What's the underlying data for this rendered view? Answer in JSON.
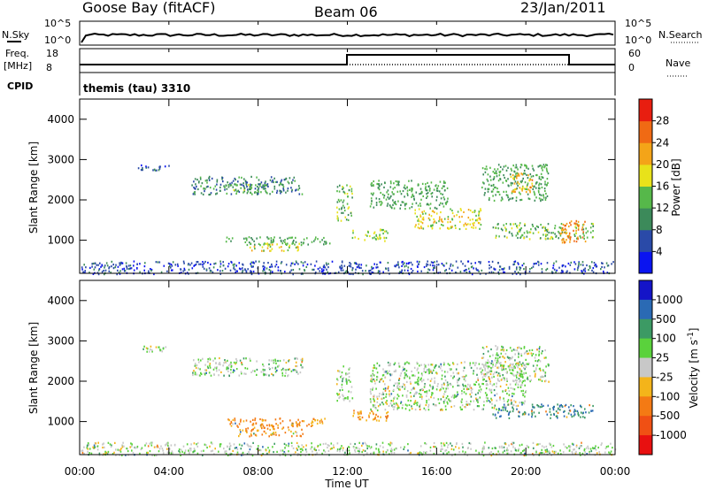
{
  "header": {
    "station": "Goose Bay (fitACF)",
    "beam": "Beam 06",
    "date": "23/Jan/2011"
  },
  "small_panels": {
    "nsky_label": "N.Sky",
    "nsky_ticks": [
      "10^5",
      "10^0"
    ],
    "nsearch_label": "N.Search",
    "nsearch_ticks": [
      "10^5",
      "10^0"
    ],
    "freq_label": "Freq.",
    "freq_unit": "[MHz]",
    "freq_ticks": [
      "18",
      "8"
    ],
    "nave_label": "Nave",
    "nave_ticks": [
      "60",
      "0"
    ],
    "cpid_label": "CPID",
    "cpid_value": "themis (tau) 3310"
  },
  "chart_data": [
    {
      "type": "heatmap",
      "title": "",
      "xlabel": "Time UT",
      "ylabel": "Slant Range [km]",
      "xlim": [
        0,
        24
      ],
      "ylim": [
        180,
        4500
      ],
      "x_ticks": [
        "00:00",
        "04:00",
        "08:00",
        "12:00",
        "16:00",
        "20:00",
        "00:00"
      ],
      "y_ticks": [
        "1000",
        "2000",
        "3000",
        "4000"
      ],
      "colorbar": {
        "label": "Power [dB]",
        "ticks": [
          "4",
          "8",
          "12",
          "16",
          "20",
          "24",
          "28"
        ],
        "colors": [
          "#0a14f0",
          "#2a4aa8",
          "#3c8a5a",
          "#56b84a",
          "#e8e21a",
          "#f4a418",
          "#f06a14",
          "#e81e10"
        ]
      },
      "regions": [
        {
          "t": [
            2.6,
            4.0
          ],
          "r": [
            2750,
            2900
          ],
          "power": 7
        },
        {
          "t": [
            5.0,
            10.0
          ],
          "r": [
            2150,
            2600
          ],
          "power": 9
        },
        {
          "t": [
            6.5,
            8.5
          ],
          "r": [
            2200,
            2400
          ],
          "power": 14
        },
        {
          "t": [
            6.5,
            11.2
          ],
          "r": [
            900,
            1100
          ],
          "power": 12
        },
        {
          "t": [
            7.5,
            10.0
          ],
          "r": [
            750,
            950
          ],
          "power": 18
        },
        {
          "t": [
            11.5,
            12.2
          ],
          "r": [
            1500,
            2400
          ],
          "power": 14
        },
        {
          "t": [
            12.2,
            13.8
          ],
          "r": [
            1000,
            1300
          ],
          "power": 16
        },
        {
          "t": [
            13.0,
            16.5
          ],
          "r": [
            1800,
            2500
          ],
          "power": 12
        },
        {
          "t": [
            15.0,
            18.0
          ],
          "r": [
            1300,
            1800
          ],
          "power": 18
        },
        {
          "t": [
            18.0,
            21.0
          ],
          "r": [
            2000,
            2900
          ],
          "power": 12
        },
        {
          "t": [
            19.3,
            20.3
          ],
          "r": [
            2200,
            2700
          ],
          "power": 22
        },
        {
          "t": [
            18.5,
            23.0
          ],
          "r": [
            1050,
            1450
          ],
          "power": 14
        },
        {
          "t": [
            21.5,
            22.7
          ],
          "r": [
            950,
            1500
          ],
          "power": 24
        },
        {
          "t": [
            0.0,
            24.0
          ],
          "r": [
            180,
            500
          ],
          "power": 6
        }
      ]
    },
    {
      "type": "heatmap",
      "title": "",
      "xlabel": "Time UT",
      "ylabel": "Slant Range [km]",
      "xlim": [
        0,
        24
      ],
      "ylim": [
        180,
        4500
      ],
      "x_ticks": [
        "00:00",
        "04:00",
        "08:00",
        "12:00",
        "16:00",
        "20:00",
        "00:00"
      ],
      "y_ticks": [
        "1000",
        "2000",
        "3000",
        "4000"
      ],
      "colorbar": {
        "label": "Velocity [m s^-1]",
        "ticks": [
          "1000",
          "500",
          "100",
          "25",
          "-25",
          "-100",
          "-500",
          "-1000"
        ],
        "colors": [
          "#1414c8",
          "#2a6ab4",
          "#3c9a64",
          "#5ad23c",
          "#c8c8c8",
          "#f4b41a",
          "#f47a14",
          "#f05014",
          "#e81010"
        ]
      },
      "regions": [
        {
          "t": [
            2.6,
            4.0
          ],
          "r": [
            2750,
            2900
          ],
          "velocity": 0
        },
        {
          "t": [
            5.0,
            10.0
          ],
          "r": [
            2150,
            2600
          ],
          "velocity": 0
        },
        {
          "t": [
            6.5,
            11.2
          ],
          "r": [
            900,
            1100
          ],
          "velocity": -100
        },
        {
          "t": [
            7.0,
            10.0
          ],
          "r": [
            650,
            950
          ],
          "velocity": -100
        },
        {
          "t": [
            11.5,
            12.2
          ],
          "r": [
            1500,
            2400
          ],
          "velocity": 0
        },
        {
          "t": [
            12.2,
            13.8
          ],
          "r": [
            1000,
            1300
          ],
          "velocity": -100
        },
        {
          "t": [
            13.0,
            20.0
          ],
          "r": [
            1300,
            2500
          ],
          "velocity": 0
        },
        {
          "t": [
            18.0,
            21.0
          ],
          "r": [
            2000,
            2900
          ],
          "velocity": 0
        },
        {
          "t": [
            18.5,
            23.0
          ],
          "r": [
            1100,
            1450
          ],
          "velocity": 100
        },
        {
          "t": [
            0.0,
            24.0
          ],
          "r": [
            180,
            500
          ],
          "velocity": 0
        }
      ]
    }
  ]
}
